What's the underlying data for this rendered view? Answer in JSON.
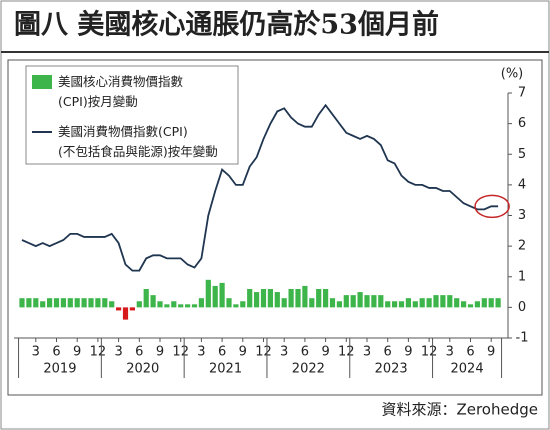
{
  "chart_data": {
    "type": "bar_line",
    "title": "圖八 美國核心通脹仍高於53個月前",
    "y_unit": "(%)",
    "source": "資料來源：Zerohedge",
    "categories": [
      null,
      null,
      "3",
      null,
      null,
      "6",
      null,
      null,
      "9",
      null,
      null,
      "12",
      null,
      null,
      "3",
      null,
      null,
      "6",
      null,
      null,
      "9",
      null,
      null,
      "12",
      null,
      null,
      "3",
      null,
      null,
      "6",
      null,
      null,
      "9",
      null,
      null,
      "12",
      null,
      null,
      "3",
      null,
      null,
      "6",
      null,
      null,
      "9",
      null,
      null,
      "12",
      null,
      null,
      "3",
      null,
      null,
      "6",
      null,
      null,
      "9",
      null,
      null,
      "12",
      null,
      null,
      "3",
      null,
      null,
      "6",
      null,
      null,
      "9",
      null
    ],
    "years": [
      "2019",
      "2020",
      "2021",
      "2022",
      "2023",
      "2024"
    ],
    "series": [
      {
        "name": "美國核心消費物價指數(CPI)按月變動",
        "kind": "bar",
        "color": "#3db54a",
        "negative_color": "#d7191c",
        "values": [
          0.3,
          0.3,
          0.3,
          0.2,
          0.3,
          0.3,
          0.3,
          0.3,
          0.3,
          0.3,
          0.3,
          0.3,
          0.3,
          0.2,
          -0.1,
          -0.4,
          -0.1,
          0.2,
          0.6,
          0.4,
          0.2,
          0.1,
          0.2,
          0.1,
          0.1,
          0.1,
          0.3,
          0.9,
          0.7,
          0.8,
          0.3,
          0.1,
          0.2,
          0.6,
          0.5,
          0.6,
          0.6,
          0.5,
          0.3,
          0.6,
          0.6,
          0.7,
          0.3,
          0.6,
          0.6,
          0.3,
          0.2,
          0.4,
          0.4,
          0.5,
          0.4,
          0.4,
          0.4,
          0.2,
          0.2,
          0.2,
          0.3,
          0.2,
          0.3,
          0.3,
          0.4,
          0.4,
          0.4,
          0.3,
          0.2,
          0.1,
          0.2,
          0.3,
          0.3,
          0.3
        ]
      },
      {
        "name": "美國消費物價指數(CPI)(不包括食品與能源)按年變動",
        "kind": "line",
        "color": "#1f3550",
        "values": [
          2.2,
          2.1,
          2.0,
          2.1,
          2.0,
          2.1,
          2.2,
          2.4,
          2.4,
          2.3,
          2.3,
          2.3,
          2.3,
          2.4,
          2.1,
          1.4,
          1.2,
          1.2,
          1.6,
          1.7,
          1.7,
          1.6,
          1.6,
          1.6,
          1.4,
          1.3,
          1.6,
          3.0,
          3.8,
          4.5,
          4.3,
          4.0,
          4.0,
          4.6,
          4.9,
          5.5,
          6.0,
          6.4,
          6.5,
          6.2,
          6.0,
          5.9,
          5.9,
          6.3,
          6.6,
          6.3,
          6.0,
          5.7,
          5.6,
          5.5,
          5.6,
          5.5,
          5.3,
          4.8,
          4.7,
          4.3,
          4.1,
          4.0,
          4.0,
          3.9,
          3.9,
          3.8,
          3.8,
          3.6,
          3.4,
          3.3,
          3.2,
          3.2,
          3.3,
          3.3
        ]
      }
    ],
    "ylim": [
      -1,
      7
    ],
    "yticks": [
      -1,
      0,
      1,
      2,
      3,
      4,
      5,
      6,
      7
    ],
    "grid": false
  }
}
